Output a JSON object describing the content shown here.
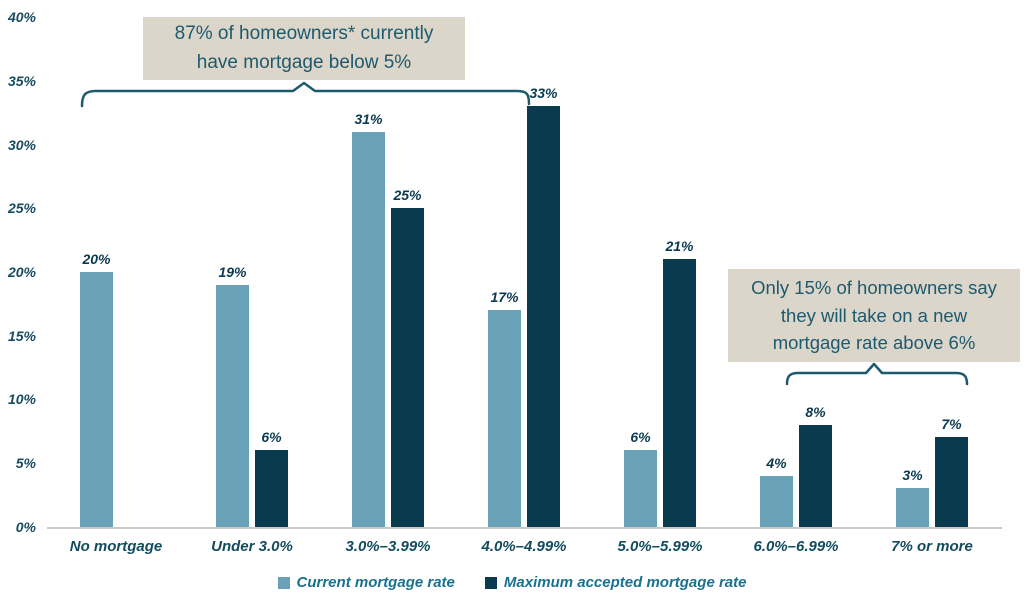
{
  "chart_data": {
    "type": "bar",
    "title": "",
    "xlabel": "",
    "ylabel": "",
    "ylim": [
      0,
      40
    ],
    "grid": false,
    "legend_position": "bottom-center",
    "categories": [
      "No mortgage",
      "Under 3.0%",
      "3.0%–3.99%",
      "4.0%–4.99%",
      "5.0%–5.99%",
      "6.0%–6.99%",
      "7% or more"
    ],
    "series": [
      {
        "name": "Current mortgage rate",
        "color": "#69a2b7",
        "values": [
          20,
          19,
          31,
          17,
          6,
          4,
          3
        ],
        "labels": [
          "20%",
          "19%",
          "31%",
          "17%",
          "6%",
          "4%",
          "3%"
        ]
      },
      {
        "name": "Maximum accepted mortgage rate",
        "color": "#093a4e",
        "values": [
          null,
          6,
          25,
          33,
          21,
          8,
          7
        ],
        "labels": [
          "",
          "6%",
          "25%",
          "33%",
          "21%",
          "8%",
          "7%"
        ]
      }
    ],
    "y_ticks": [
      {
        "value": 40,
        "label": "40%"
      },
      {
        "value": 35,
        "label": "35%"
      },
      {
        "value": 30,
        "label": "30%"
      },
      {
        "value": 25,
        "label": "25%"
      },
      {
        "value": 20,
        "label": "20%"
      },
      {
        "value": 15,
        "label": "15%"
      },
      {
        "value": 10,
        "label": "10%"
      },
      {
        "value": 5,
        "label": "5%"
      },
      {
        "value": 0,
        "label": "0%"
      }
    ]
  },
  "annotations": {
    "left_note_text": "87% of homeowners* currently\nhave mortgage below 5%",
    "right_note_text": "Only 15% of homeowners say\nthey will take on a new\nmortgage rate above 6%",
    "note_bg": "#dcd5c9",
    "note_text_color": "#1d5a6e",
    "bracket_color": "#1c5a6e"
  },
  "legend": {
    "items": [
      {
        "label": "Current mortgage rate",
        "color": "#69a2b7"
      },
      {
        "label": "Maximum accepted mortgage rate",
        "color": "#093a4e"
      }
    ]
  }
}
